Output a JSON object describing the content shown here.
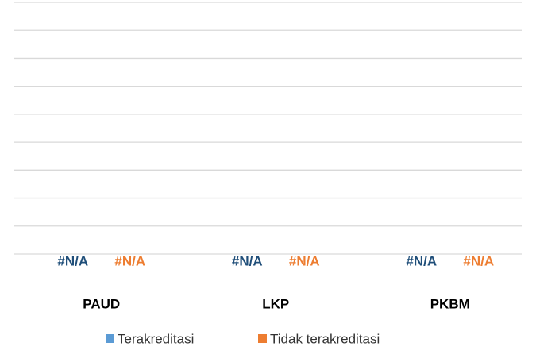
{
  "chart_data": {
    "type": "bar",
    "categories": [
      "PAUD",
      "LKP",
      "PKBM"
    ],
    "series": [
      {
        "name": "Terakreditasi",
        "color": "#5b9bd5",
        "label_color": "#1f4e79",
        "values": [
          null,
          null,
          null
        ],
        "value_labels": [
          "#N/A",
          "#N/A",
          "#N/A"
        ]
      },
      {
        "name": "Tidak terakreditasi",
        "color": "#ed7d31",
        "label_color": "#ed7d31",
        "values": [
          null,
          null,
          null
        ],
        "value_labels": [
          "#N/A",
          "#N/A",
          "#N/A"
        ]
      }
    ],
    "ylim": [
      0,
      9
    ],
    "yticks": [
      0,
      1,
      2,
      3,
      4,
      5,
      6,
      7,
      8,
      9
    ],
    "grid": true,
    "legend": "bottom"
  }
}
